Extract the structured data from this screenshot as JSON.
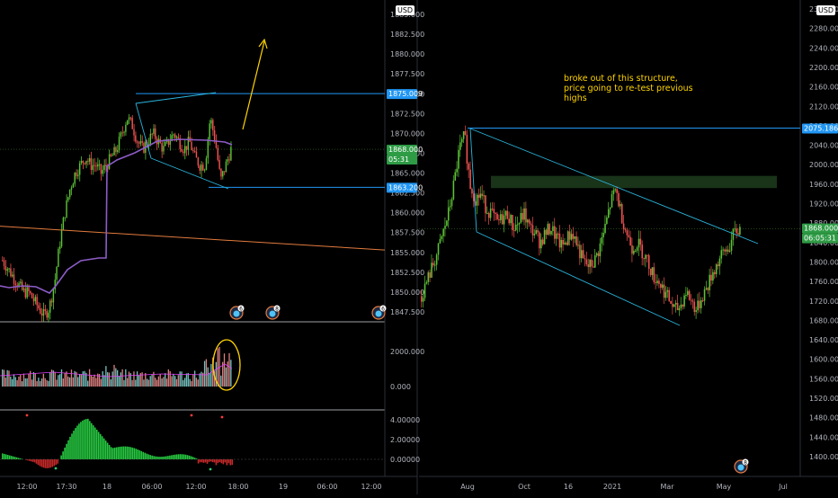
{
  "left_panel": {
    "currency": "USD",
    "price_ticks": [
      "1885.000",
      "1882.500",
      "1880.000",
      "1877.500",
      "1875.000",
      "1872.500",
      "1870.000",
      "1867.500",
      "1865.000",
      "1862.500",
      "1860.000",
      "1857.500",
      "1855.000",
      "1852.500",
      "1850.000",
      "1847.500"
    ],
    "price_tags": {
      "high": "1875.009",
      "last": "1868.000",
      "countdown": "05:31",
      "low": "1863.200"
    },
    "volume_ticks": [
      "2000.000",
      "0.000"
    ],
    "osc_ticks": [
      "4.00000",
      "2.00000",
      "0.00000"
    ],
    "time_ticks": [
      "12:00",
      "17:30",
      "18",
      "06:00",
      "12:00",
      "18:00",
      "19",
      "06:00",
      "12:00"
    ],
    "event_badges": [
      "6",
      "8",
      "6"
    ]
  },
  "right_panel": {
    "currency": "USD",
    "price_ticks": [
      "2320.000",
      "2280.000",
      "2240.000",
      "2200.000",
      "2160.000",
      "2120.000",
      "2080.000",
      "2040.000",
      "2000.000",
      "1960.000",
      "1920.000",
      "1880.000",
      "1840.000",
      "1800.000",
      "1760.000",
      "1720.000",
      "1680.000",
      "1640.000",
      "1600.000",
      "1560.000",
      "1520.000",
      "1480.000",
      "1440.000",
      "1400.000"
    ],
    "price_tags": {
      "level": "2075.186",
      "last": "1868.000",
      "countdown": "06:05:31"
    },
    "time_ticks": [
      "Aug",
      "Oct",
      "16",
      "2021",
      "Mar",
      "May",
      "Jul"
    ],
    "event_badges": [
      "8"
    ],
    "annotation": "broke out of this structure, price going to re-test previous highs"
  },
  "colors": {
    "background": "#000000",
    "up": "#26a69a",
    "down": "#ef5350",
    "up_bright": "#5bc236",
    "tag_blue": "#2196f3",
    "tag_green": "#2e9b45",
    "line_purple": "#8d5cc7",
    "line_orange": "#e37b3e",
    "arrow_yellow": "#ffd400",
    "channel_blue": "#2ab5dd",
    "zone_green": "#1c3a1c"
  },
  "chart_data": [
    {
      "type": "candlestick",
      "panel": "left",
      "title": "",
      "ylim": [
        1846,
        1886
      ],
      "x_ticks": [
        "12:00",
        "17:30",
        "18",
        "06:00",
        "12:00",
        "18:00",
        "19",
        "06:00",
        "12:00"
      ],
      "key_levels": [
        1875.009,
        1863.2
      ],
      "last_price": 1868.0,
      "approx_closes": [
        1854,
        1853,
        1852,
        1851,
        1850,
        1850,
        1849,
        1848,
        1847,
        1848,
        1851,
        1856,
        1860,
        1863,
        1865,
        1866,
        1867,
        1866,
        1866,
        1865,
        1866,
        1867,
        1868,
        1870,
        1872,
        1871,
        1869,
        1868,
        1869,
        1870,
        1869,
        1868,
        1869,
        1870,
        1869,
        1868,
        1869,
        1867,
        1866,
        1866,
        1872,
        1869,
        1864,
        1866,
        1868
      ]
    },
    {
      "type": "candlestick",
      "panel": "right",
      "title": "",
      "ylim": [
        1370,
        2340
      ],
      "x_ticks": [
        "Aug",
        "Oct",
        "16",
        "2021",
        "Mar",
        "May",
        "Jul"
      ],
      "key_levels": [
        2075.186
      ],
      "supply_zone": [
        1952,
        1977
      ],
      "last_price": 1868.0,
      "approx_closes": [
        1730,
        1760,
        1790,
        1820,
        1860,
        1900,
        1960,
        2030,
        2060,
        1960,
        1930,
        1940,
        1910,
        1900,
        1880,
        1890,
        1900,
        1870,
        1880,
        1900,
        1870,
        1860,
        1840,
        1860,
        1870,
        1850,
        1830,
        1850,
        1860,
        1830,
        1800,
        1790,
        1800,
        1830,
        1870,
        1920,
        1950,
        1900,
        1860,
        1830,
        1840,
        1820,
        1800,
        1770,
        1760,
        1740,
        1720,
        1700,
        1710,
        1740,
        1720,
        1700,
        1730,
        1750,
        1780,
        1800,
        1820,
        1830,
        1860,
        1868
      ]
    },
    {
      "type": "bar",
      "panel": "left-volume",
      "title": "",
      "ylim": [
        0,
        2600
      ],
      "highlighted_spike_max": 2300
    },
    {
      "type": "bar",
      "panel": "left-oscillator",
      "title": "",
      "ylim": [
        -0.8,
        4.6
      ],
      "peak": 4.1
    }
  ]
}
